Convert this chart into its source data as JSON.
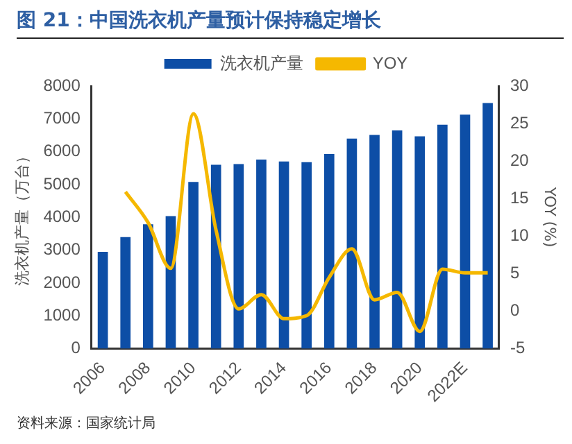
{
  "chart_data": {
    "type": "bar",
    "title": "图 21：中国洗衣机产量预计保持稳定增长",
    "ylabel": "洗衣机产量（万台）",
    "y2label": "YOY (%)",
    "categories": [
      "2006",
      null,
      "2008",
      null,
      "2010",
      null,
      "2012",
      null,
      "2014",
      null,
      "2016",
      null,
      "2018",
      null,
      "2020",
      null,
      "2022E",
      null
    ],
    "series": [
      {
        "name": "洗衣机产量",
        "color": "#0d4ea6",
        "values": [
          2950,
          3400,
          3790,
          4040,
          5080,
          5600,
          5620,
          5760,
          5700,
          5680,
          5930,
          6400,
          6510,
          6650,
          6470,
          6820,
          7130,
          7480
        ]
      },
      {
        "name": "YOY",
        "type": "line",
        "axis": "y2",
        "color": "#f5b800",
        "marker": "none",
        "values": [
          null,
          15.9,
          11.8,
          5.7,
          26.3,
          10.8,
          0.3,
          2.2,
          -1.0,
          -0.6,
          4.5,
          8.3,
          1.5,
          2.5,
          -2.7,
          5.6,
          5.1,
          5.1
        ]
      }
    ],
    "ylim": [
      0,
      8000
    ],
    "yticks": [
      0,
      1000,
      2000,
      3000,
      4000,
      5000,
      6000,
      7000,
      8000
    ],
    "y2lim": [
      -5,
      30
    ],
    "y2ticks": [
      -5,
      0,
      5,
      10,
      15,
      20,
      25,
      30
    ],
    "grid": false,
    "legend": "top",
    "annotations": [
      "资料来源：国家统计局"
    ]
  }
}
